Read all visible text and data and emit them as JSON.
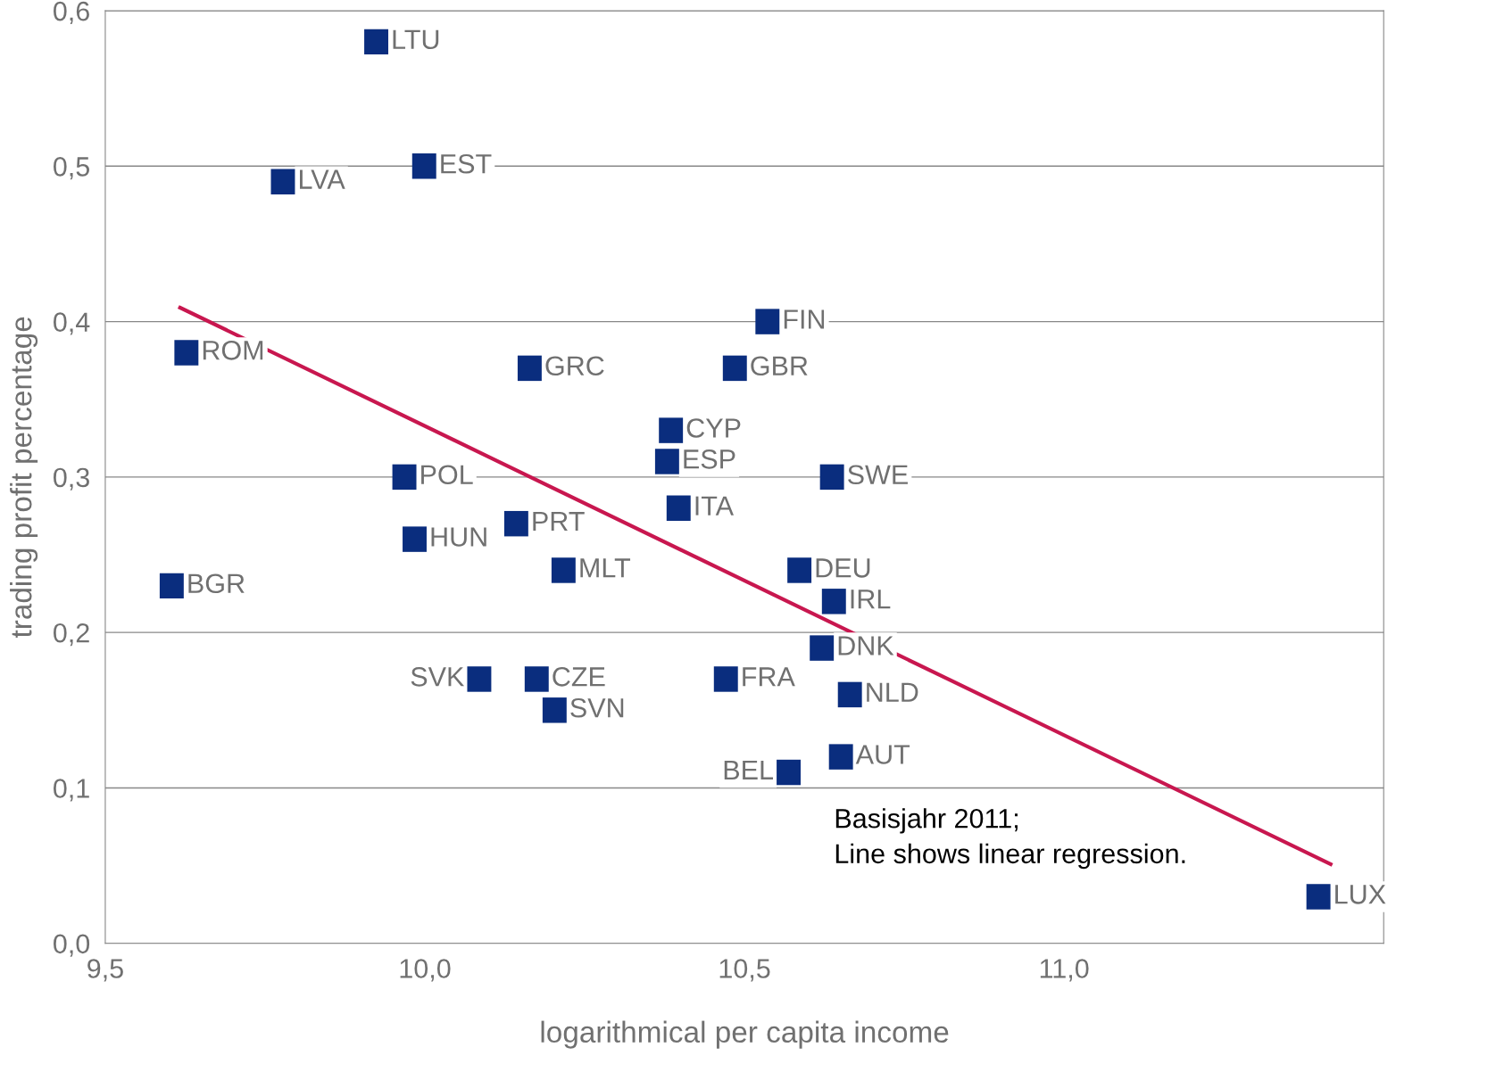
{
  "chart_data": {
    "type": "scatter",
    "xlabel": "logarithmical per capita income",
    "ylabel": "trading profit percentage",
    "xlim": [
      9.5,
      11.5
    ],
    "ylim": [
      0.0,
      0.6
    ],
    "xticks": [
      {
        "value": 9.5,
        "label": "9,5"
      },
      {
        "value": 10.0,
        "label": "10,0"
      },
      {
        "value": 10.5,
        "label": "10,5"
      },
      {
        "value": 11.0,
        "label": "11,0"
      }
    ],
    "yticks": [
      {
        "value": 0.0,
        "label": "0,0"
      },
      {
        "value": 0.1,
        "label": "0,1"
      },
      {
        "value": 0.2,
        "label": "0,2"
      },
      {
        "value": 0.3,
        "label": "0,3"
      },
      {
        "value": 0.4,
        "label": "0,4"
      },
      {
        "value": 0.5,
        "label": "0,5"
      },
      {
        "value": 0.6,
        "label": "0,6"
      }
    ],
    "grid": "y",
    "legend": false,
    "marker": "square",
    "annotations": [
      "Basisjahr 2011;\nLine shows linear regression."
    ],
    "series": [
      {
        "name": "LTU",
        "color": "#0a2d7e",
        "x": [
          9.925
        ],
        "values": [
          0.58
        ]
      },
      {
        "name": "EST",
        "color": "#0a2d7e",
        "x": [
          10.0
        ],
        "values": [
          0.5
        ]
      },
      {
        "name": "LVA",
        "color": "#0a2d7e",
        "x": [
          9.779
        ],
        "values": [
          0.49
        ]
      },
      {
        "name": "FIN",
        "color": "#0a2d7e",
        "x": [
          10.537
        ],
        "values": [
          0.4
        ]
      },
      {
        "name": "ROM",
        "color": "#0a2d7e",
        "x": [
          9.628
        ],
        "values": [
          0.38
        ]
      },
      {
        "name": "GRC",
        "color": "#0a2d7e",
        "x": [
          10.165
        ],
        "values": [
          0.37
        ]
      },
      {
        "name": "GBR",
        "color": "#0a2d7e",
        "x": [
          10.486
        ],
        "values": [
          0.37
        ]
      },
      {
        "name": "CYP",
        "color": "#0a2d7e",
        "x": [
          10.386
        ],
        "values": [
          0.33
        ]
      },
      {
        "name": "ESP",
        "color": "#0a2d7e",
        "x": [
          10.38
        ],
        "values": [
          0.31
        ]
      },
      {
        "name": "POL",
        "color": "#0a2d7e",
        "x": [
          9.969
        ],
        "values": [
          0.3
        ]
      },
      {
        "name": "SWE",
        "color": "#0a2d7e",
        "x": [
          10.638
        ],
        "values": [
          0.3
        ]
      },
      {
        "name": "ITA",
        "color": "#0a2d7e",
        "x": [
          10.398
        ],
        "values": [
          0.28
        ]
      },
      {
        "name": "PRT",
        "color": "#0a2d7e",
        "x": [
          10.144
        ],
        "values": [
          0.27
        ]
      },
      {
        "name": "HUN",
        "color": "#0a2d7e",
        "x": [
          9.985
        ],
        "values": [
          0.26
        ]
      },
      {
        "name": "BGR",
        "color": "#0a2d7e",
        "x": [
          9.605
        ],
        "values": [
          0.23
        ]
      },
      {
        "name": "MLT",
        "color": "#0a2d7e",
        "x": [
          10.218
        ],
        "values": [
          0.24
        ]
      },
      {
        "name": "DEU",
        "color": "#0a2d7e",
        "x": [
          10.587
        ],
        "values": [
          0.24
        ]
      },
      {
        "name": "IRL",
        "color": "#0a2d7e",
        "x": [
          10.641
        ],
        "values": [
          0.22
        ]
      },
      {
        "name": "DNK",
        "color": "#0a2d7e",
        "x": [
          10.622
        ],
        "values": [
          0.19
        ]
      },
      {
        "name": "SVK",
        "color": "#0a2d7e",
        "x": [
          10.084
        ],
        "values": [
          0.17
        ]
      },
      {
        "name": "CZE",
        "color": "#0a2d7e",
        "x": [
          10.176
        ],
        "values": [
          0.17
        ]
      },
      {
        "name": "FRA",
        "color": "#0a2d7e",
        "x": [
          10.472
        ],
        "values": [
          0.17
        ]
      },
      {
        "name": "SVN",
        "color": "#0a2d7e",
        "x": [
          10.204
        ],
        "values": [
          0.15
        ]
      },
      {
        "name": "NLD",
        "color": "#0a2d7e",
        "x": [
          10.666
        ],
        "values": [
          0.16
        ]
      },
      {
        "name": "AUT",
        "color": "#0a2d7e",
        "x": [
          10.652
        ],
        "values": [
          0.12
        ]
      },
      {
        "name": "BEL",
        "color": "#0a2d7e",
        "x": [
          10.568
        ],
        "values": [
          0.11
        ]
      },
      {
        "name": "LUX",
        "color": "#0a2d7e",
        "x": [
          11.399
        ],
        "values": [
          0.03
        ]
      },
      {
        "type": "line",
        "marker": "none",
        "color": "#c8174f",
        "x": [
          9.617,
          11.417
        ],
        "values": [
          0.409,
          0.051
        ]
      }
    ]
  }
}
